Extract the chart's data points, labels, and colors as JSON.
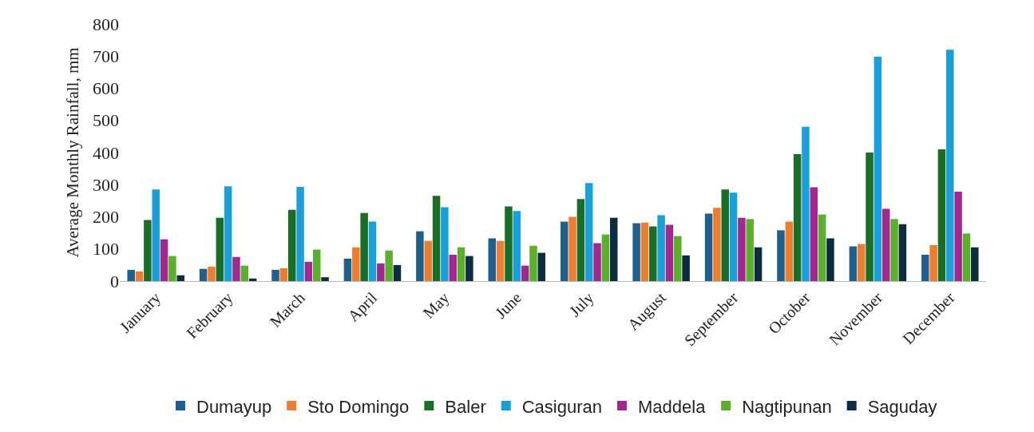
{
  "chart_data": {
    "type": "bar",
    "ylabel": "Average Monthly Rainfall, mm",
    "categories": [
      "January",
      "February",
      "March",
      "April",
      "May",
      "June",
      "July",
      "August",
      "September",
      "October",
      "November",
      "December"
    ],
    "series": [
      {
        "name": "Dumayup",
        "color": "#1f5f8b",
        "values": [
          35,
          38,
          35,
          70,
          155,
          133,
          185,
          180,
          210,
          158,
          108,
          82
        ]
      },
      {
        "name": "Sto Domingo",
        "color": "#ed7d31",
        "values": [
          30,
          45,
          40,
          105,
          125,
          125,
          200,
          182,
          228,
          185,
          115,
          112
        ]
      },
      {
        "name": "Baler",
        "color": "#1a6e25",
        "values": [
          190,
          197,
          222,
          212,
          265,
          232,
          255,
          170,
          285,
          395,
          400,
          410
        ]
      },
      {
        "name": "Casiguran",
        "color": "#1aa0d8",
        "values": [
          285,
          295,
          293,
          185,
          230,
          218,
          305,
          205,
          275,
          480,
          698,
          720
        ]
      },
      {
        "name": "Maddela",
        "color": "#a0288f",
        "values": [
          130,
          75,
          60,
          55,
          82,
          48,
          118,
          175,
          197,
          292,
          225,
          278
        ]
      },
      {
        "name": "Nagtipunan",
        "color": "#5ab02d",
        "values": [
          78,
          48,
          98,
          95,
          105,
          110,
          145,
          140,
          193,
          207,
          193,
          148
        ]
      },
      {
        "name": "Saguday",
        "color": "#0d2c40",
        "values": [
          18,
          8,
          12,
          50,
          78,
          88,
          197,
          80,
          105,
          133,
          177,
          105
        ]
      }
    ],
    "ylim": [
      0,
      800
    ],
    "yticks": [
      0,
      100,
      200,
      300,
      400,
      500,
      600,
      700,
      800
    ],
    "grid": false,
    "legend": "bottom"
  }
}
